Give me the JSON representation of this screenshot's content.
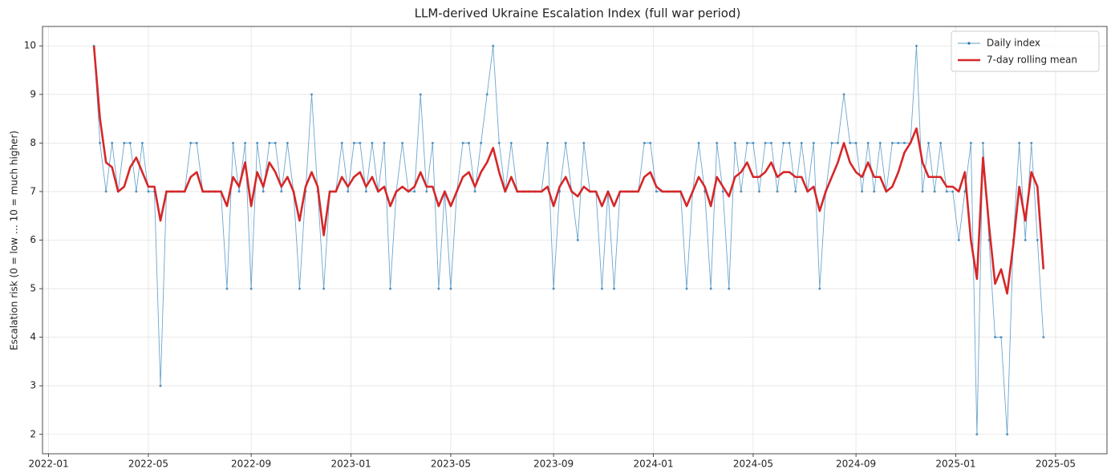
{
  "chart_data": {
    "type": "line",
    "title": "LLM-derived Ukraine Escalation Index  (full war period)",
    "y_label": "Escalation risk   (0 = low … 10 = much higher)",
    "grid": true,
    "legend": "upper right",
    "xlim": [
      2021.98,
      2025.5
    ],
    "xticks": [
      {
        "value": 2022.0,
        "label": "2022-01"
      },
      {
        "value": 2022.33,
        "label": "2022-05"
      },
      {
        "value": 2022.67,
        "label": "2022-09"
      },
      {
        "value": 2023.0,
        "label": "2023-01"
      },
      {
        "value": 2023.33,
        "label": "2023-05"
      },
      {
        "value": 2023.67,
        "label": "2023-09"
      },
      {
        "value": 2024.0,
        "label": "2024-01"
      },
      {
        "value": 2024.33,
        "label": "2024-05"
      },
      {
        "value": 2024.67,
        "label": "2024-09"
      },
      {
        "value": 2025.0,
        "label": "2025-01"
      },
      {
        "value": 2025.33,
        "label": "2025-05"
      }
    ],
    "ylim": [
      1.6,
      10.4
    ],
    "yticks": [
      2,
      3,
      4,
      5,
      6,
      7,
      8,
      9,
      10
    ],
    "x": [
      2022.15,
      2022.17,
      2022.19,
      2022.21,
      2022.23,
      2022.25,
      2022.27,
      2022.29,
      2022.31,
      2022.33,
      2022.35,
      2022.37,
      2022.39,
      2022.41,
      2022.43,
      2022.45,
      2022.47,
      2022.49,
      2022.51,
      2022.53,
      2022.55,
      2022.57,
      2022.59,
      2022.61,
      2022.63,
      2022.65,
      2022.67,
      2022.69,
      2022.71,
      2022.73,
      2022.75,
      2022.77,
      2022.79,
      2022.81,
      2022.83,
      2022.85,
      2022.87,
      2022.89,
      2022.91,
      2022.93,
      2022.95,
      2022.97,
      2022.99,
      2023.01,
      2023.03,
      2023.05,
      2023.07,
      2023.09,
      2023.11,
      2023.13,
      2023.15,
      2023.17,
      2023.19,
      2023.21,
      2023.23,
      2023.25,
      2023.27,
      2023.29,
      2023.31,
      2023.33,
      2023.35,
      2023.37,
      2023.39,
      2023.41,
      2023.43,
      2023.45,
      2023.47,
      2023.49,
      2023.51,
      2023.53,
      2023.55,
      2023.57,
      2023.59,
      2023.61,
      2023.63,
      2023.65,
      2023.67,
      2023.69,
      2023.71,
      2023.73,
      2023.75,
      2023.77,
      2023.79,
      2023.81,
      2023.83,
      2023.85,
      2023.87,
      2023.89,
      2023.91,
      2023.93,
      2023.95,
      2023.97,
      2023.99,
      2024.01,
      2024.03,
      2024.05,
      2024.07,
      2024.09,
      2024.11,
      2024.13,
      2024.15,
      2024.17,
      2024.19,
      2024.21,
      2024.23,
      2024.25,
      2024.27,
      2024.29,
      2024.31,
      2024.33,
      2024.35,
      2024.37,
      2024.39,
      2024.41,
      2024.43,
      2024.45,
      2024.47,
      2024.49,
      2024.51,
      2024.53,
      2024.55,
      2024.57,
      2024.59,
      2024.61,
      2024.63,
      2024.65,
      2024.67,
      2024.69,
      2024.71,
      2024.73,
      2024.75,
      2024.77,
      2024.79,
      2024.81,
      2024.83,
      2024.85,
      2024.87,
      2024.89,
      2024.91,
      2024.93,
      2024.95,
      2024.97,
      2024.99,
      2025.01,
      2025.03,
      2025.05,
      2025.07,
      2025.09,
      2025.11,
      2025.13,
      2025.15,
      2025.17,
      2025.19,
      2025.21,
      2025.23,
      2025.25,
      2025.27,
      2025.29
    ],
    "series": [
      {
        "name": "Daily index",
        "color": "#1f77b4",
        "values": [
          10,
          8,
          7,
          8,
          7,
          8,
          8,
          7,
          8,
          7,
          7,
          3,
          7,
          7,
          7,
          7,
          8,
          8,
          7,
          7,
          7,
          7,
          5,
          8,
          7,
          8,
          5,
          8,
          7,
          8,
          8,
          7,
          8,
          7,
          5,
          7,
          9,
          7,
          5,
          7,
          7,
          8,
          7,
          8,
          8,
          7,
          8,
          7,
          8,
          5,
          7,
          8,
          7,
          7,
          9,
          7,
          8,
          5,
          7,
          5,
          7,
          8,
          8,
          7,
          8,
          9,
          10,
          8,
          7,
          8,
          7,
          7,
          7,
          7,
          7,
          8,
          5,
          7,
          8,
          7,
          6,
          8,
          7,
          7,
          5,
          7,
          5,
          7,
          7,
          7,
          7,
          8,
          8,
          7,
          7,
          7,
          7,
          7,
          5,
          7,
          8,
          7,
          5,
          8,
          7,
          5,
          8,
          7,
          8,
          8,
          7,
          8,
          8,
          7,
          8,
          8,
          7,
          8,
          7,
          8,
          5,
          7,
          8,
          8,
          9,
          8,
          8,
          7,
          8,
          7,
          8,
          7,
          8,
          8,
          8,
          8,
          10,
          7,
          8,
          7,
          8,
          7,
          7,
          6,
          7,
          8,
          2,
          8,
          6,
          4,
          4,
          2,
          6,
          8,
          6,
          8,
          6,
          4
        ]
      },
      {
        "name": "7-day rolling mean",
        "color": "#d62728",
        "values": [
          10,
          8.5,
          7.6,
          7.5,
          7.0,
          7.1,
          7.5,
          7.7,
          7.4,
          7.1,
          7.1,
          6.4,
          7.0,
          7.0,
          7.0,
          7.0,
          7.3,
          7.4,
          7.0,
          7.0,
          7.0,
          7.0,
          6.7,
          7.3,
          7.1,
          7.6,
          6.7,
          7.4,
          7.1,
          7.6,
          7.4,
          7.1,
          7.3,
          7.0,
          6.4,
          7.1,
          7.4,
          7.1,
          6.1,
          7.0,
          7.0,
          7.3,
          7.1,
          7.3,
          7.4,
          7.1,
          7.3,
          7.0,
          7.1,
          6.7,
          7.0,
          7.1,
          7.0,
          7.1,
          7.4,
          7.1,
          7.1,
          6.7,
          7.0,
          6.7,
          7.0,
          7.3,
          7.4,
          7.1,
          7.4,
          7.6,
          7.9,
          7.4,
          7.0,
          7.3,
          7.0,
          7.0,
          7.0,
          7.0,
          7.0,
          7.1,
          6.7,
          7.1,
          7.3,
          7.0,
          6.9,
          7.1,
          7.0,
          7.0,
          6.7,
          7.0,
          6.7,
          7.0,
          7.0,
          7.0,
          7.0,
          7.3,
          7.4,
          7.1,
          7.0,
          7.0,
          7.0,
          7.0,
          6.7,
          7.0,
          7.3,
          7.1,
          6.7,
          7.3,
          7.1,
          6.9,
          7.3,
          7.4,
          7.6,
          7.3,
          7.3,
          7.4,
          7.6,
          7.3,
          7.4,
          7.4,
          7.3,
          7.3,
          7.0,
          7.1,
          6.6,
          7.0,
          7.3,
          7.6,
          8.0,
          7.6,
          7.4,
          7.3,
          7.6,
          7.3,
          7.3,
          7.0,
          7.1,
          7.4,
          7.8,
          8.0,
          8.3,
          7.6,
          7.3,
          7.3,
          7.3,
          7.1,
          7.1,
          7.0,
          7.4,
          6.0,
          5.2,
          7.7,
          6.3,
          5.1,
          5.4,
          4.9,
          5.9,
          7.1,
          6.4,
          7.4,
          7.1,
          5.4
        ]
      }
    ]
  }
}
